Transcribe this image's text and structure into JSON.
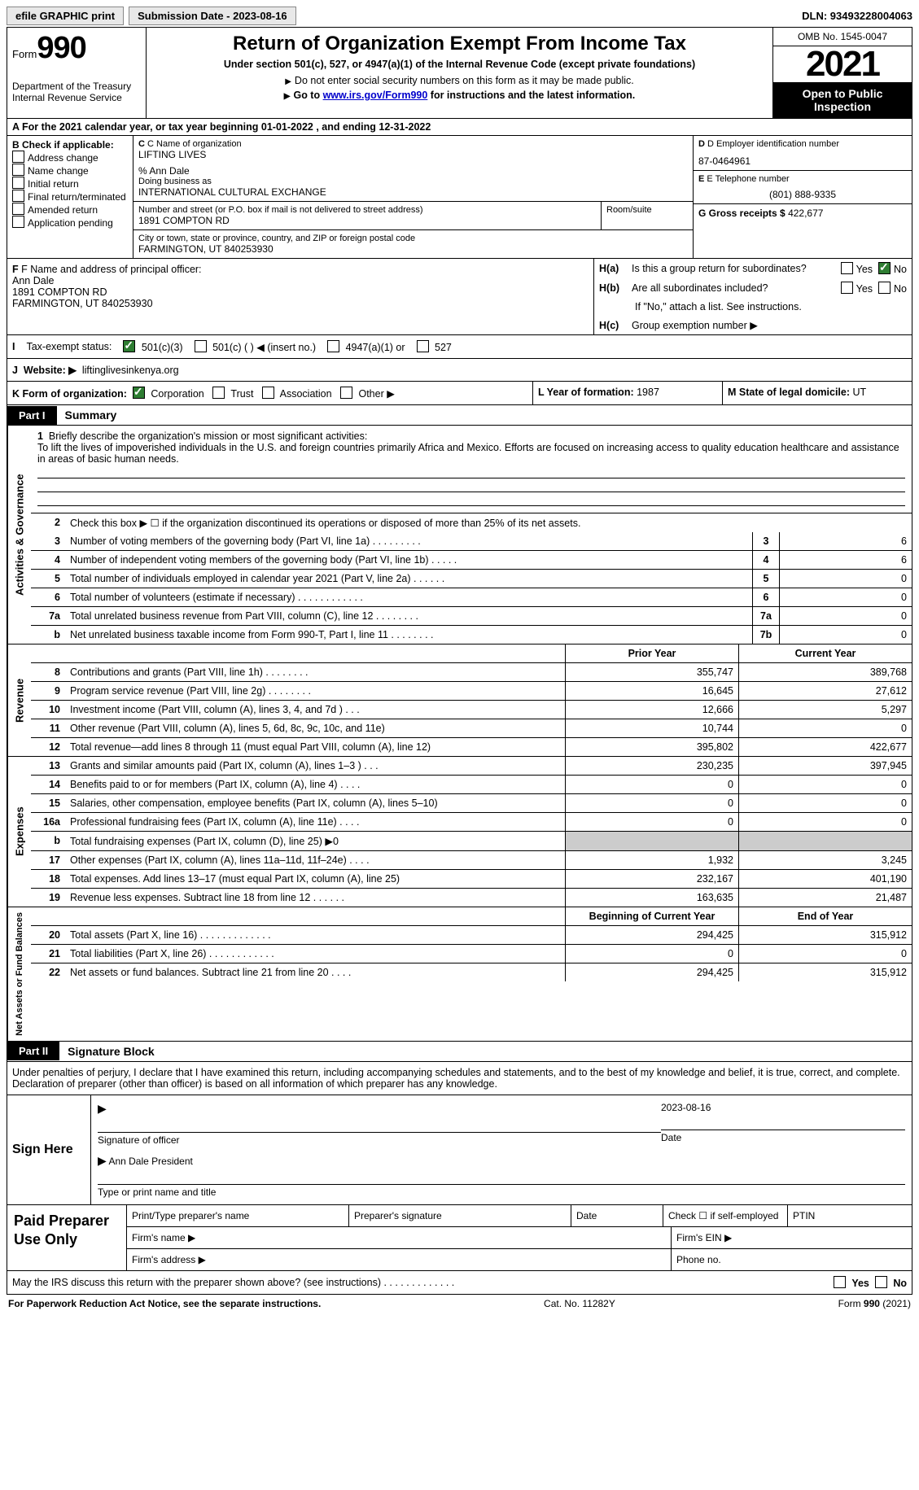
{
  "topbar": {
    "efile": "efile GRAPHIC print",
    "submission": "Submission Date - 2023-08-16",
    "dln": "DLN: 93493228004063"
  },
  "header": {
    "form_word": "Form",
    "form_num": "990",
    "dept": "Department of the Treasury\nInternal Revenue Service",
    "title": "Return of Organization Exempt From Income Tax",
    "subtitle": "Under section 501(c), 527, or 4947(a)(1) of the Internal Revenue Code (except private foundations)",
    "note1": "Do not enter social security numbers on this form as it may be made public.",
    "note2_pre": "Go to ",
    "note2_link": "www.irs.gov/Form990",
    "note2_post": " for instructions and the latest information.",
    "omb": "OMB No. 1545-0047",
    "year": "2021",
    "pubinsp": "Open to Public Inspection"
  },
  "row_a": "A For the 2021 calendar year, or tax year beginning 01-01-2022    , and ending 12-31-2022",
  "col_b": {
    "intro": "B Check if applicable:",
    "items": [
      "Address change",
      "Name change",
      "Initial return",
      "Final return/terminated",
      "Amended return",
      "Application pending"
    ]
  },
  "col_c": {
    "name_lbl": "C Name of organization",
    "name": "LIFTING LIVES",
    "care_of": "% Ann Dale",
    "dba_lbl": "Doing business as",
    "dba": "INTERNATIONAL CULTURAL EXCHANGE",
    "addr_lbl": "Number and street (or P.O. box if mail is not delivered to street address)",
    "room_lbl": "Room/suite",
    "addr": "1891 COMPTON RD",
    "city_lbl": "City or town, state or province, country, and ZIP or foreign postal code",
    "city": "FARMINGTON, UT  840253930"
  },
  "col_d": {
    "ein_lbl": "D Employer identification number",
    "ein": "87-0464961",
    "tel_lbl": "E Telephone number",
    "tel": "(801) 888-9335",
    "gross_lbl": "G Gross receipts $",
    "gross": "422,677"
  },
  "row_f": {
    "lbl": "F Name and address of principal officer:",
    "name": "Ann Dale",
    "addr1": "1891 COMPTON RD",
    "addr2": "FARMINGTON, UT  840253930"
  },
  "row_h": {
    "ha_lbl": "H(a)",
    "ha_txt": "Is this a group return for subordinates?",
    "hb_lbl": "H(b)",
    "hb_txt": "Are all subordinates included?",
    "hb_note": "If \"No,\" attach a list. See instructions.",
    "hc_lbl": "H(c)",
    "hc_txt": "Group exemption number ▶",
    "yes": "Yes",
    "no": "No"
  },
  "row_i": {
    "lbl": "I",
    "txt": "Tax-exempt status:",
    "o1": "501(c)(3)",
    "o2": "501(c) (  ) ◀ (insert no.)",
    "o3": "4947(a)(1) or",
    "o4": "527"
  },
  "row_j": {
    "lbl": "J",
    "txt": "Website: ▶",
    "val": "liftinglivesinkenya.org"
  },
  "row_k": {
    "lbl": "K Form of organization:",
    "o1": "Corporation",
    "o2": "Trust",
    "o3": "Association",
    "o4": "Other ▶",
    "l_lbl": "L Year of formation:",
    "l_val": "1987",
    "m_lbl": "M State of legal domicile:",
    "m_val": "UT"
  },
  "parts": {
    "p1": "Part I",
    "p1_title": "Summary",
    "p2": "Part II",
    "p2_title": "Signature Block"
  },
  "tabs": {
    "t1": "Activities & Governance",
    "t2": "Revenue",
    "t3": "Expenses",
    "t4": "Net Assets or Fund Balances"
  },
  "mission": {
    "num": "1",
    "lbl": "Briefly describe the organization's mission or most significant activities:",
    "txt": "To lift the lives of impoverished individuals in the U.S. and foreign countries primarily Africa and Mexico. Efforts are focused on increasing access to quality education healthcare and assistance in areas of basic human needs."
  },
  "lines_gov": [
    {
      "n": "2",
      "d": "Check this box ▶ ☐ if the organization discontinued its operations or disposed of more than 25% of its net assets.",
      "b": "",
      "v1": "",
      "v2": ""
    },
    {
      "n": "3",
      "d": "Number of voting members of the governing body (Part VI, line 1a)  .    .    .    .    .    .    .    .    .",
      "b": "3",
      "v1": "",
      "v2": "6"
    },
    {
      "n": "4",
      "d": "Number of independent voting members of the governing body (Part VI, line 1b)  .    .    .    .    .",
      "b": "4",
      "v1": "",
      "v2": "6"
    },
    {
      "n": "5",
      "d": "Total number of individuals employed in calendar year 2021 (Part V, line 2a)  .    .    .    .    .    .",
      "b": "5",
      "v1": "",
      "v2": "0"
    },
    {
      "n": "6",
      "d": "Total number of volunteers (estimate if necessary)    .    .    .    .    .    .    .    .    .    .    .    .",
      "b": "6",
      "v1": "",
      "v2": "0"
    },
    {
      "n": "7a",
      "d": "Total unrelated business revenue from Part VIII, column (C), line 12    .    .    .    .    .    .    .    .",
      "b": "7a",
      "v1": "",
      "v2": "0"
    },
    {
      "n": "b",
      "d": "Net unrelated business taxable income from Form 990-T, Part I, line 11  .    .    .    .    .    .    .    .",
      "b": "7b",
      "v1": "",
      "v2": "0"
    }
  ],
  "col_hdrs": {
    "prior": "Prior Year",
    "current": "Current Year"
  },
  "lines_rev": [
    {
      "n": "8",
      "d": "Contributions and grants (Part VIII, line 1h)   .    .    .    .    .    .    .    .",
      "v1": "355,747",
      "v2": "389,768"
    },
    {
      "n": "9",
      "d": "Program service revenue (Part VIII, line 2g)   .    .    .    .    .    .    .    .",
      "v1": "16,645",
      "v2": "27,612"
    },
    {
      "n": "10",
      "d": "Investment income (Part VIII, column (A), lines 3, 4, and 7d )   .    .    .",
      "v1": "12,666",
      "v2": "5,297"
    },
    {
      "n": "11",
      "d": "Other revenue (Part VIII, column (A), lines 5, 6d, 8c, 9c, 10c, and 11e)",
      "v1": "10,744",
      "v2": "0"
    },
    {
      "n": "12",
      "d": "Total revenue—add lines 8 through 11 (must equal Part VIII, column (A), line 12)",
      "v1": "395,802",
      "v2": "422,677"
    }
  ],
  "lines_exp": [
    {
      "n": "13",
      "d": "Grants and similar amounts paid (Part IX, column (A), lines 1–3 )  .    .    .",
      "v1": "230,235",
      "v2": "397,945"
    },
    {
      "n": "14",
      "d": "Benefits paid to or for members (Part IX, column (A), line 4)  .    .    .    .",
      "v1": "0",
      "v2": "0"
    },
    {
      "n": "15",
      "d": "Salaries, other compensation, employee benefits (Part IX, column (A), lines 5–10)",
      "v1": "0",
      "v2": "0"
    },
    {
      "n": "16a",
      "d": "Professional fundraising fees (Part IX, column (A), line 11e)   .    .    .    .",
      "v1": "0",
      "v2": "0"
    },
    {
      "n": "b",
      "d": "Total fundraising expenses (Part IX, column (D), line 25) ▶0",
      "v1": "SHADE",
      "v2": "SHADE"
    },
    {
      "n": "17",
      "d": "Other expenses (Part IX, column (A), lines 11a–11d, 11f–24e)  .    .    .    .",
      "v1": "1,932",
      "v2": "3,245"
    },
    {
      "n": "18",
      "d": "Total expenses. Add lines 13–17 (must equal Part IX, column (A), line 25)",
      "v1": "232,167",
      "v2": "401,190"
    },
    {
      "n": "19",
      "d": "Revenue less expenses. Subtract line 18 from line 12  .    .    .    .    .    .",
      "v1": "163,635",
      "v2": "21,487"
    }
  ],
  "col_hdrs2": {
    "prior": "Beginning of Current Year",
    "current": "End of Year"
  },
  "lines_net": [
    {
      "n": "20",
      "d": "Total assets (Part X, line 16)  .    .    .    .    .    .    .    .    .    .    .    .    .",
      "v1": "294,425",
      "v2": "315,912"
    },
    {
      "n": "21",
      "d": "Total liabilities (Part X, line 26)  .    .    .    .    .    .    .    .    .    .    .    .",
      "v1": "0",
      "v2": "0"
    },
    {
      "n": "22",
      "d": "Net assets or fund balances. Subtract line 21 from line 20   .    .    .    .",
      "v1": "294,425",
      "v2": "315,912"
    }
  ],
  "sig": {
    "intro": "Under penalties of perjury, I declare that I have examined this return, including accompanying schedules and statements, and to the best of my knowledge and belief, it is true, correct, and complete. Declaration of preparer (other than officer) is based on all information of which preparer has any knowledge.",
    "sign_here": "Sign Here",
    "sig_lbl": "Signature of officer",
    "date_lbl": "Date",
    "date": "2023-08-16",
    "name": "Ann Dale  President",
    "name_lbl": "Type or print name and title"
  },
  "prep": {
    "title": "Paid Preparer Use Only",
    "c1": "Print/Type preparer's name",
    "c2": "Preparer's signature",
    "c3": "Date",
    "c4": "Check ☐ if self-employed",
    "c5": "PTIN",
    "firm_name": "Firm's name    ▶",
    "firm_ein": "Firm's EIN ▶",
    "firm_addr": "Firm's address ▶",
    "phone": "Phone no."
  },
  "footer": {
    "q": "May the IRS discuss this return with the preparer shown above? (see instructions)   .    .    .    .    .    .    .    .    .    .    .    .    .",
    "yes": "Yes",
    "no": "No",
    "pra": "For Paperwork Reduction Act Notice, see the separate instructions.",
    "cat": "Cat. No. 11282Y",
    "form": "Form 990 (2021)"
  }
}
